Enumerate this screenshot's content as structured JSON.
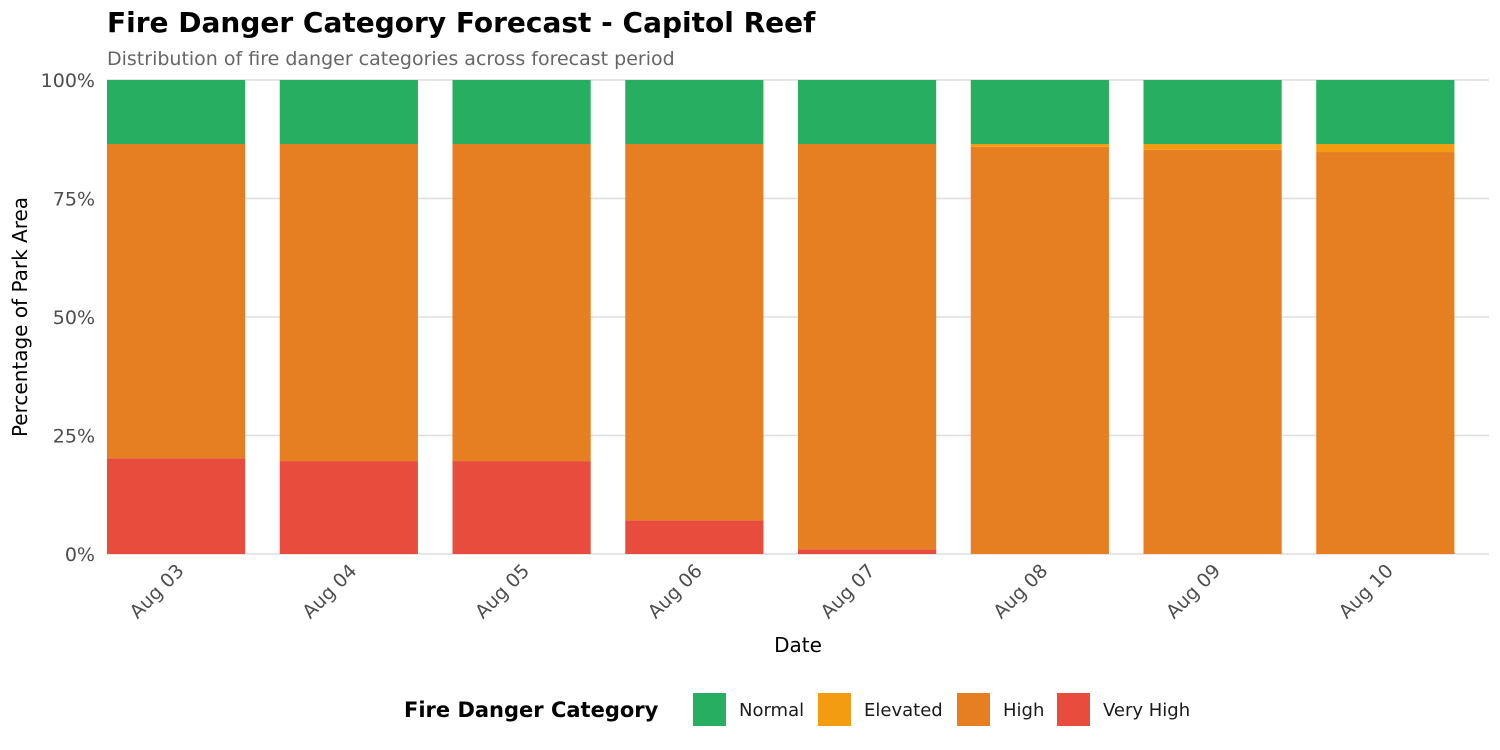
{
  "chart_data": {
    "type": "bar",
    "stacked": true,
    "title": "Fire Danger Category Forecast - Capitol Reef",
    "subtitle": "Distribution of fire danger categories across forecast period",
    "xlabel": "Date",
    "ylabel": "Percentage of Park Area",
    "ylim": [
      0,
      100
    ],
    "yticks": [
      "0%",
      "25%",
      "50%",
      "75%",
      "100%"
    ],
    "categories": [
      "Aug 03",
      "Aug 04",
      "Aug 05",
      "Aug 06",
      "Aug 07",
      "Aug 08",
      "Aug 09",
      "Aug 10"
    ],
    "series": [
      {
        "name": "Very High",
        "color": "#e74c3c",
        "values": [
          20.2,
          19.6,
          19.6,
          7.1,
          1.0,
          0,
          0,
          0
        ]
      },
      {
        "name": "High",
        "color": "#e67e22",
        "values": [
          66.3,
          66.9,
          66.9,
          79.4,
          85.5,
          85.9,
          85.3,
          84.8
        ]
      },
      {
        "name": "Elevated",
        "color": "#f39c12",
        "values": [
          0,
          0,
          0,
          0,
          0,
          0.6,
          1.2,
          1.7
        ]
      },
      {
        "name": "Normal",
        "color": "#27ae60",
        "values": [
          13.5,
          13.5,
          13.5,
          13.5,
          13.5,
          13.5,
          13.5,
          13.5
        ]
      }
    ],
    "grid": true,
    "legend": {
      "title": "Fire Danger Category",
      "position": "bottom",
      "order": [
        "Normal",
        "Elevated",
        "High",
        "Very High"
      ]
    }
  }
}
